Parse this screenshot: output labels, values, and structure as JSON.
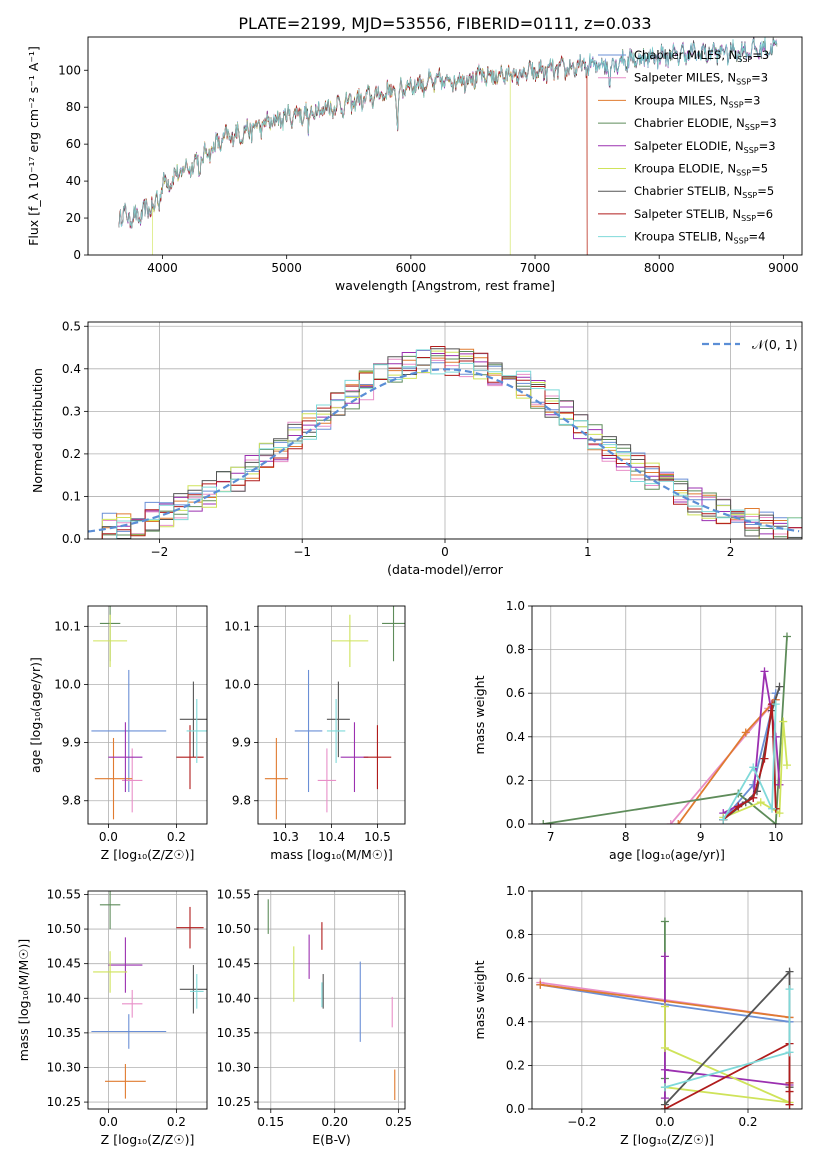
{
  "title": "PLATE=2199, MJD=53556, FIBERID=0111, z=0.033",
  "colors": {
    "chabrier_miles": "#6a8fd6",
    "salpeter_miles": "#e88fc8",
    "kroupa_miles": "#e07b30",
    "chabrier_elodie": "#5e8c5a",
    "salpeter_elodie": "#9b30b0",
    "kroupa_elodie": "#cfe35a",
    "chabrier_stelib": "#555555",
    "salpeter_stelib": "#b01c1c",
    "kroupa_stelib": "#7fd9d9",
    "normal_curve": "#5b8ed6",
    "grid": "#b0b0b0"
  },
  "chart_data": [
    {
      "type": "line",
      "xlabel": "wavelength [Angstrom, rest frame]",
      "ylabel": "Flux [f_λ 10⁻¹⁷ erg cm⁻² s⁻¹ A⁻¹]",
      "xlim": [
        3400,
        9150
      ],
      "ylim": [
        0,
        118
      ],
      "xticks": [
        "4000",
        "5000",
        "6000",
        "7000",
        "8000",
        "9000"
      ],
      "yticks": [
        "0",
        "20",
        "40",
        "60",
        "80",
        "100"
      ],
      "grid": false,
      "legend_position": "right",
      "legend": [
        "Chabrier MILES, N_SSP=3",
        "Salpeter MILES, N_SSP=3",
        "Kroupa MILES, N_SSP=3",
        "Chabrier ELODIE, N_SSP=3",
        "Salpeter ELODIE, N_SSP=3",
        "Kroupa ELODIE, N_SSP=5",
        "Chabrier STELIB, N_SSP=5",
        "Salpeter STELIB, N_SSP=6",
        "Kroupa STELIB, N_SSP=4"
      ],
      "continuum": {
        "x": [
          3650,
          3800,
          3900,
          4000,
          4200,
          4500,
          5000,
          5500,
          6000,
          6500,
          7000,
          7400,
          7800,
          8200,
          8600,
          8900
        ],
        "y": [
          22,
          20,
          26,
          38,
          47,
          63,
          75,
          82,
          92,
          96,
          99,
          102,
          106,
          109,
          110,
          112
        ]
      },
      "lines_absorption": [
        {
          "x": 3934,
          "depth": 10
        },
        {
          "x": 3969,
          "depth": 8
        },
        {
          "x": 4300,
          "depth": 10
        },
        {
          "x": 5175,
          "depth": 12
        },
        {
          "x": 5892,
          "depth": 25
        },
        {
          "x": 6870,
          "depth": 6
        },
        {
          "x": 7600,
          "depth": 14
        }
      ],
      "series_limits": {
        "kroupa_elodie": [
          3920,
          6800
        ],
        "salpeter_stelib": [
          3650,
          7420
        ],
        "kroupa_miles": [
          3650,
          7420
        ]
      }
    },
    {
      "type": "histogram",
      "xlabel": "(data-model)/error",
      "ylabel": "Normed distribution",
      "xlim": [
        -2.5,
        2.5
      ],
      "ylim": [
        0,
        0.51
      ],
      "xticks": [
        "−2",
        "−1",
        "0",
        "1",
        "2"
      ],
      "yticks": [
        "0.0",
        "0.1",
        "0.2",
        "0.3",
        "0.4",
        "0.5"
      ],
      "grid": true,
      "bin_width": 0.1,
      "legend_position": "top-right",
      "legend": [
        "𝒩(0, 1)"
      ],
      "gaussian": {
        "mean": 0,
        "sigma": 1
      }
    },
    {
      "type": "scatter",
      "xlabel": "Z [log₁₀(Z/Z☉)]",
      "ylabel": "age  [log₁₀(age/yr)]",
      "xlim": [
        -0.06,
        0.29
      ],
      "ylim": [
        9.76,
        10.135
      ],
      "xticks": [
        "0.0",
        "0.2"
      ],
      "yticks": [
        "9.8",
        "9.9",
        "10.0",
        "10.1"
      ],
      "grid": true,
      "points": [
        {
          "series": "chabrier_miles",
          "x": 0.06,
          "y": 9.92,
          "xerr": 0.11,
          "yerr": 0.105
        },
        {
          "series": "salpeter_miles",
          "x": 0.07,
          "y": 9.835,
          "xerr": 0.03,
          "yerr": 0.055
        },
        {
          "series": "kroupa_miles",
          "x": 0.015,
          "y": 9.838,
          "xerr": 0.055,
          "yerr": 0.07
        },
        {
          "series": "chabrier_elodie",
          "x": 0.005,
          "y": 10.105,
          "xerr": 0.03,
          "yerr": 0.065
        },
        {
          "series": "salpeter_elodie",
          "x": 0.05,
          "y": 9.875,
          "xerr": 0.05,
          "yerr": 0.06
        },
        {
          "series": "kroupa_elodie",
          "x": 0.005,
          "y": 10.075,
          "xerr": 0.05,
          "yerr": 0.045
        },
        {
          "series": "chabrier_stelib",
          "x": 0.25,
          "y": 9.94,
          "xerr": 0.04,
          "yerr": 0.065
        },
        {
          "series": "salpeter_stelib",
          "x": 0.24,
          "y": 9.875,
          "xerr": 0.04,
          "yerr": 0.055
        },
        {
          "series": "kroupa_stelib",
          "x": 0.26,
          "y": 9.92,
          "xerr": 0.03,
          "yerr": 0.055
        }
      ]
    },
    {
      "type": "scatter",
      "xlabel": "mass [log₁₀(M/M☉)]",
      "ylabel": "",
      "xlim": [
        10.24,
        10.56
      ],
      "ylim": [
        9.76,
        10.135
      ],
      "xticks": [
        "10.3",
        "10.4",
        "10.5"
      ],
      "yticks": [
        "9.8",
        "9.9",
        "10.0",
        "10.1"
      ],
      "grid": true,
      "points": [
        {
          "series": "chabrier_miles",
          "x": 10.35,
          "y": 9.92,
          "xerr": 0.03,
          "yerr": 0.105
        },
        {
          "series": "salpeter_miles",
          "x": 10.39,
          "y": 9.835,
          "xerr": 0.02,
          "yerr": 0.055
        },
        {
          "series": "kroupa_miles",
          "x": 10.28,
          "y": 9.838,
          "xerr": 0.025,
          "yerr": 0.07
        },
        {
          "series": "chabrier_elodie",
          "x": 10.535,
          "y": 10.105,
          "xerr": 0.025,
          "yerr": 0.065
        },
        {
          "series": "salpeter_elodie",
          "x": 10.45,
          "y": 9.875,
          "xerr": 0.03,
          "yerr": 0.06
        },
        {
          "series": "kroupa_elodie",
          "x": 10.44,
          "y": 10.075,
          "xerr": 0.04,
          "yerr": 0.045
        },
        {
          "series": "chabrier_stelib",
          "x": 10.415,
          "y": 9.94,
          "xerr": 0.025,
          "yerr": 0.065
        },
        {
          "series": "salpeter_stelib",
          "x": 10.5,
          "y": 9.875,
          "xerr": 0.03,
          "yerr": 0.055
        },
        {
          "series": "kroupa_stelib",
          "x": 10.41,
          "y": 9.92,
          "xerr": 0.02,
          "yerr": 0.055
        }
      ]
    },
    {
      "type": "line",
      "xlabel": "age  [log₁₀(age/yr)]",
      "ylabel": "mass weight",
      "xlim": [
        6.75,
        10.35
      ],
      "ylim": [
        0,
        1.0
      ],
      "xticks": [
        "7",
        "8",
        "9",
        "10"
      ],
      "yticks": [
        "0.0",
        "0.2",
        "0.4",
        "0.6",
        "0.8",
        "1.0"
      ],
      "grid": true,
      "series": [
        {
          "name": "chabrier_miles",
          "x": [
            9.3,
            9.7,
            10.0
          ],
          "y": [
            0.02,
            0.18,
            0.6
          ]
        },
        {
          "name": "salpeter_miles",
          "x": [
            8.6,
            9.9,
            10.0
          ],
          "y": [
            0.0,
            0.53,
            0.57
          ]
        },
        {
          "name": "kroupa_miles",
          "x": [
            8.7,
            9.6,
            10.0
          ],
          "y": [
            0.0,
            0.42,
            0.57
          ]
        },
        {
          "name": "chabrier_elodie",
          "x": [
            6.9,
            9.5,
            10.0,
            10.15
          ],
          "y": [
            0.0,
            0.14,
            0.0,
            0.86
          ]
        },
        {
          "name": "salpeter_elodie",
          "x": [
            9.3,
            9.7,
            9.85,
            10.0,
            10.05
          ],
          "y": [
            0.05,
            0.12,
            0.7,
            0.4,
            0.18
          ]
        },
        {
          "name": "kroupa_elodie",
          "x": [
            9.3,
            9.8,
            10.05,
            10.1,
            10.15
          ],
          "y": [
            0.03,
            0.1,
            0.05,
            0.47,
            0.27
          ]
        },
        {
          "name": "chabrier_stelib",
          "x": [
            9.3,
            9.6,
            9.75,
            9.95,
            10.05
          ],
          "y": [
            0.02,
            0.1,
            0.15,
            0.52,
            0.63
          ]
        },
        {
          "name": "salpeter_stelib",
          "x": [
            9.3,
            9.5,
            9.7,
            9.85,
            9.95,
            10.0
          ],
          "y": [
            0.02,
            0.08,
            0.12,
            0.3,
            0.55,
            0.07
          ]
        },
        {
          "name": "kroupa_stelib",
          "x": [
            9.3,
            9.7,
            9.95,
            10.0
          ],
          "y": [
            0.02,
            0.26,
            0.07,
            0.55
          ]
        }
      ]
    },
    {
      "type": "scatter",
      "xlabel": "Z [log₁₀(Z/Z☉)]",
      "ylabel": "mass [log₁₀(M/M☉)]",
      "xlim": [
        -0.06,
        0.29
      ],
      "ylim": [
        10.24,
        10.555
      ],
      "xticks": [
        "0.0",
        "0.2"
      ],
      "yticks": [
        "10.25",
        "10.30",
        "10.35",
        "10.40",
        "10.45",
        "10.50",
        "10.55"
      ],
      "grid": true,
      "points": [
        {
          "series": "chabrier_miles",
          "x": 0.06,
          "y": 10.352,
          "xerr": 0.11,
          "yerr": 0.025
        },
        {
          "series": "salpeter_miles",
          "x": 0.07,
          "y": 10.392,
          "xerr": 0.03,
          "yerr": 0.02
        },
        {
          "series": "kroupa_miles",
          "x": 0.05,
          "y": 10.28,
          "xerr": 0.06,
          "yerr": 0.025
        },
        {
          "series": "chabrier_elodie",
          "x": 0.005,
          "y": 10.535,
          "xerr": 0.03,
          "yerr": 0.035
        },
        {
          "series": "salpeter_elodie",
          "x": 0.05,
          "y": 10.448,
          "xerr": 0.05,
          "yerr": 0.04
        },
        {
          "series": "kroupa_elodie",
          "x": 0.005,
          "y": 10.438,
          "xerr": 0.05,
          "yerr": 0.03
        },
        {
          "series": "chabrier_stelib",
          "x": 0.25,
          "y": 10.413,
          "xerr": 0.04,
          "yerr": 0.035
        },
        {
          "series": "salpeter_stelib",
          "x": 0.24,
          "y": 10.502,
          "xerr": 0.04,
          "yerr": 0.03
        },
        {
          "series": "kroupa_stelib",
          "x": 0.26,
          "y": 10.41,
          "xerr": 0.02,
          "yerr": 0.025
        }
      ]
    },
    {
      "type": "scatter",
      "xlabel": "E(B-V)",
      "ylabel": "",
      "xlim": [
        0.14,
        0.255
      ],
      "ylim": [
        10.24,
        10.555
      ],
      "xticks": [
        "0.15",
        "0.20",
        "0.25"
      ],
      "yticks": [
        "10.25",
        "10.30",
        "10.35",
        "10.40",
        "10.45",
        "10.50",
        "10.55"
      ],
      "grid": true,
      "points": [
        {
          "series": "chabrier_miles",
          "x": 0.22,
          "y": 10.395,
          "xerr": 0,
          "yerr": 0.058
        },
        {
          "series": "salpeter_miles",
          "x": 0.245,
          "y": 10.38,
          "xerr": 0,
          "yerr": 0.022
        },
        {
          "series": "kroupa_miles",
          "x": 0.247,
          "y": 10.275,
          "xerr": 0,
          "yerr": 0.022
        },
        {
          "series": "chabrier_elodie",
          "x": 0.148,
          "y": 10.518,
          "xerr": 0,
          "yerr": 0.025
        },
        {
          "series": "salpeter_elodie",
          "x": 0.18,
          "y": 10.46,
          "xerr": 0,
          "yerr": 0.032
        },
        {
          "series": "kroupa_elodie",
          "x": 0.168,
          "y": 10.435,
          "xerr": 0,
          "yerr": 0.04
        },
        {
          "series": "chabrier_stelib",
          "x": 0.191,
          "y": 10.41,
          "xerr": 0,
          "yerr": 0.025
        },
        {
          "series": "salpeter_stelib",
          "x": 0.19,
          "y": 10.49,
          "xerr": 0,
          "yerr": 0.02
        },
        {
          "series": "kroupa_stelib",
          "x": 0.19,
          "y": 10.405,
          "xerr": 0,
          "yerr": 0.018
        }
      ]
    },
    {
      "type": "line",
      "xlabel": "Z [log₁₀(Z/Z☉)]",
      "ylabel": "mass weight",
      "xlim": [
        -0.32,
        0.33
      ],
      "ylim": [
        0,
        1.0
      ],
      "xticks": [
        "−0.2",
        "0.0",
        "0.2"
      ],
      "yticks": [
        "0.0",
        "0.2",
        "0.4",
        "0.6",
        "0.8",
        "1.0"
      ],
      "grid": true,
      "series": [
        {
          "name": "chabrier_miles",
          "x": [
            -0.3,
            0.0,
            0.3
          ],
          "y": [
            0.57,
            0.48,
            0.4
          ]
        },
        {
          "name": "salpeter_miles",
          "x": [
            -0.3,
            0.3
          ],
          "y": [
            0.58,
            0.42
          ]
        },
        {
          "name": "kroupa_miles",
          "x": [
            -0.3,
            0.3
          ],
          "y": [
            0.57,
            0.42
          ]
        },
        {
          "name": "chabrier_elodie",
          "x": [
            0.0,
            0.0,
            0.0
          ],
          "y": [
            0.86,
            0.14,
            0.0
          ]
        },
        {
          "name": "salpeter_elodie",
          "x": [
            0.0,
            0.0,
            0.0,
            0.3
          ],
          "y": [
            0.7,
            0.05,
            0.18,
            0.11
          ]
        },
        {
          "name": "kroupa_elodie",
          "x": [
            0.0,
            0.0,
            0.3,
            0.0
          ],
          "y": [
            0.47,
            0.28,
            0.03,
            0.1
          ]
        },
        {
          "name": "chabrier_stelib",
          "x": [
            0.0,
            0.3,
            0.3,
            0.3
          ],
          "y": [
            0.02,
            0.63,
            0.1,
            0.02
          ]
        },
        {
          "name": "salpeter_stelib",
          "x": [
            0.0,
            0.3,
            0.3,
            0.3,
            0.3
          ],
          "y": [
            0.0,
            0.3,
            0.12,
            0.08,
            0.02
          ]
        },
        {
          "name": "kroupa_stelib",
          "x": [
            0.0,
            0.3,
            0.3
          ],
          "y": [
            0.1,
            0.26,
            0.55
          ]
        }
      ]
    }
  ]
}
